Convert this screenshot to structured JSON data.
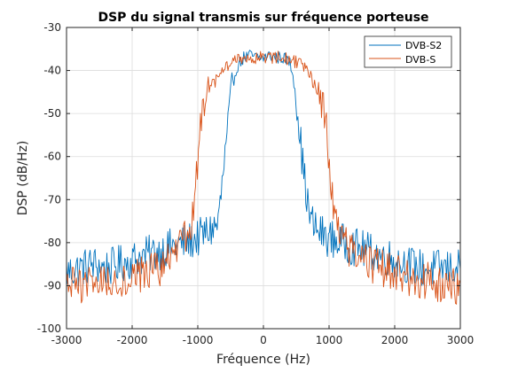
{
  "chart_data": {
    "type": "line",
    "title": "DSP du signal transmis sur fréquence porteuse",
    "xlabel": "Fréquence (Hz)",
    "ylabel": "DSP (dB/Hz)",
    "xlim": [
      -3000,
      3000
    ],
    "ylim": [
      -100,
      -30
    ],
    "xticks": [
      -3000,
      -2000,
      -1000,
      0,
      1000,
      2000,
      3000
    ],
    "xtick_labels": [
      "-3000",
      "-2000",
      "-1000",
      "0",
      "1000",
      "2000",
      "3000"
    ],
    "yticks": [
      -100,
      -90,
      -80,
      -70,
      -60,
      -50,
      -40,
      -30
    ],
    "ytick_labels": [
      "-100",
      "-90",
      "-80",
      "-70",
      "-60",
      "-50",
      "-40",
      "-30"
    ],
    "grid": true,
    "legend_position": "top-right",
    "series": [
      {
        "name": "DVB-S2",
        "color": "#0072BD",
        "points": [
          [
            -3000,
            -87
          ],
          [
            -2800,
            -86
          ],
          [
            -2600,
            -85
          ],
          [
            -2400,
            -86
          ],
          [
            -2200,
            -85
          ],
          [
            -2000,
            -84
          ],
          [
            -1800,
            -83
          ],
          [
            -1600,
            -82
          ],
          [
            -1400,
            -81
          ],
          [
            -1200,
            -80
          ],
          [
            -1000,
            -79
          ],
          [
            -900,
            -78
          ],
          [
            -800,
            -77
          ],
          [
            -700,
            -76
          ],
          [
            -650,
            -70
          ],
          [
            -600,
            -62
          ],
          [
            -550,
            -55
          ],
          [
            -500,
            -47
          ],
          [
            -450,
            -42
          ],
          [
            -400,
            -39
          ],
          [
            -300,
            -37
          ],
          [
            -200,
            -36.5
          ],
          [
            -100,
            -37
          ],
          [
            0,
            -37
          ],
          [
            100,
            -36.5
          ],
          [
            200,
            -37
          ],
          [
            300,
            -37
          ],
          [
            400,
            -38
          ],
          [
            450,
            -41
          ],
          [
            500,
            -46
          ],
          [
            550,
            -54
          ],
          [
            600,
            -62
          ],
          [
            650,
            -68
          ],
          [
            700,
            -74
          ],
          [
            800,
            -77
          ],
          [
            900,
            -78
          ],
          [
            1000,
            -79
          ],
          [
            1200,
            -80
          ],
          [
            1400,
            -81
          ],
          [
            1600,
            -82
          ],
          [
            1800,
            -83
          ],
          [
            2000,
            -84
          ],
          [
            2200,
            -85
          ],
          [
            2400,
            -86
          ],
          [
            2600,
            -86
          ],
          [
            2800,
            -86
          ],
          [
            3000,
            -86
          ]
        ]
      },
      {
        "name": "DVB-S",
        "color": "#D95319",
        "points": [
          [
            -3000,
            -90
          ],
          [
            -2800,
            -90
          ],
          [
            -2600,
            -89
          ],
          [
            -2400,
            -89
          ],
          [
            -2200,
            -89
          ],
          [
            -2000,
            -88
          ],
          [
            -1800,
            -87
          ],
          [
            -1600,
            -86
          ],
          [
            -1400,
            -84
          ],
          [
            -1300,
            -82
          ],
          [
            -1200,
            -79
          ],
          [
            -1100,
            -75
          ],
          [
            -1050,
            -72
          ],
          [
            -1000,
            -60
          ],
          [
            -950,
            -52
          ],
          [
            -900,
            -47
          ],
          [
            -800,
            -44
          ],
          [
            -700,
            -42
          ],
          [
            -600,
            -40
          ],
          [
            -500,
            -38
          ],
          [
            -300,
            -37
          ],
          [
            -100,
            -37
          ],
          [
            0,
            -37
          ],
          [
            100,
            -37
          ],
          [
            300,
            -37
          ],
          [
            500,
            -38
          ],
          [
            600,
            -39
          ],
          [
            700,
            -41
          ],
          [
            800,
            -44
          ],
          [
            900,
            -47
          ],
          [
            950,
            -52
          ],
          [
            1000,
            -60
          ],
          [
            1050,
            -70
          ],
          [
            1100,
            -74
          ],
          [
            1200,
            -78
          ],
          [
            1300,
            -81
          ],
          [
            1400,
            -83
          ],
          [
            1600,
            -85
          ],
          [
            1800,
            -86
          ],
          [
            2000,
            -87
          ],
          [
            2200,
            -88
          ],
          [
            2400,
            -89
          ],
          [
            2600,
            -89
          ],
          [
            2800,
            -90
          ],
          [
            3000,
            -90
          ]
        ]
      }
    ]
  }
}
